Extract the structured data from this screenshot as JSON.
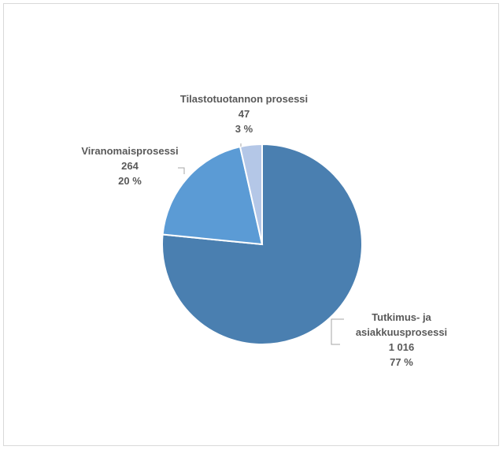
{
  "chart_data": {
    "type": "pie",
    "slices": [
      {
        "label": "Tutkimus- ja asiakkuusprosessi",
        "label_lines": [
          "Tutkimus- ja",
          "asiakkuusprosessi"
        ],
        "value_text": "1 016",
        "value": 1016,
        "percent_text": "77 %",
        "color": "#4a7fb0"
      },
      {
        "label": "Viranomaisprosessi",
        "label_lines": [
          "Viranomaisprosessi"
        ],
        "value_text": "264",
        "value": 264,
        "percent_text": "20 %",
        "color": "#5b9bd5"
      },
      {
        "label": "Tilastotuotannon prosessi",
        "label_lines": [
          "Tilastotuotannon prosessi"
        ],
        "value_text": "47",
        "value": 47,
        "percent_text": "3 %",
        "color": "#b4c7e7"
      }
    ]
  }
}
